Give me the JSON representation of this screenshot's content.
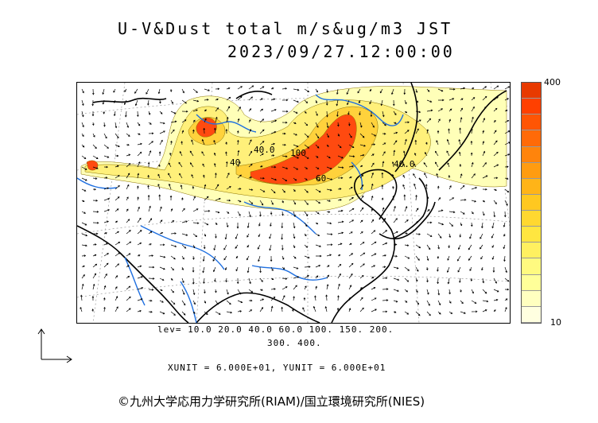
{
  "header": {
    "title": "U-V&Dust total m/s&ug/m3 JST",
    "datetime": "2023/09/27.12:00:00"
  },
  "colorbar": {
    "max_label": "400",
    "min_label": "10",
    "colors": [
      "#ffffe0",
      "#ffffc0",
      "#ffff99",
      "#fffa80",
      "#fff060",
      "#ffe640",
      "#ffd830",
      "#ffc820",
      "#ffb418",
      "#ff9c10",
      "#ff840c",
      "#ff6a08",
      "#ff5504",
      "#ff4000",
      "#e83a00"
    ]
  },
  "levels": {
    "line1": "lev= 10.0 20.0 40.0 60.0 100. 150. 200.",
    "line2": "300. 400."
  },
  "units": "XUNIT = 6.000E+01, YUNIT = 6.000E+01",
  "credit": "©九州大学応用力学研究所(RIAM)/国立環境研究所(NIES)",
  "contour_labels": [
    "40.0",
    "100",
    "40",
    "60",
    "40.0"
  ],
  "colors": {
    "coast": "#000000",
    "river": "#1e6fe0",
    "dust_high": "#ff4a10",
    "dust_mid": "#ffd040",
    "dust_low": "#ffffb0"
  }
}
